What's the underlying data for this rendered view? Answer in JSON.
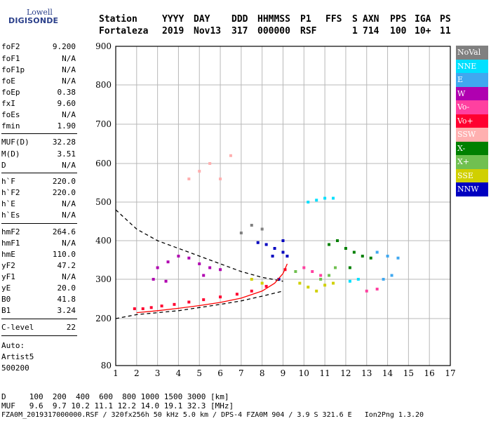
{
  "logo": {
    "top": "Lowell",
    "bottom": "DIGISONDE"
  },
  "header": {
    "labels": [
      "Station",
      "YYYY",
      "DAY",
      "DDD",
      "HHMMSS",
      "P1",
      "FFS",
      "S",
      "AXN",
      "PPS",
      "IGA",
      "PS"
    ],
    "values": [
      "Fortaleza",
      "2019",
      "Nov13",
      "317",
      "000000",
      "RSF",
      "1",
      "714",
      "100",
      "10+",
      "11"
    ]
  },
  "sidebar": {
    "group1": [
      {
        "key": "foF2",
        "value": "9.200"
      },
      {
        "key": "foF1",
        "value": "N/A"
      },
      {
        "key": "foF1p",
        "value": "N/A"
      },
      {
        "key": "foE",
        "value": "N/A"
      },
      {
        "key": "foEp",
        "value": "0.38"
      },
      {
        "key": "fxI",
        "value": "9.60"
      },
      {
        "key": "foEs",
        "value": "N/A"
      },
      {
        "key": "fmin",
        "value": "1.90"
      }
    ],
    "group2": [
      {
        "key": "MUF(D)",
        "value": "32.28"
      },
      {
        "key": "M(D)",
        "value": "3.51"
      },
      {
        "key": "D",
        "value": "N/A"
      }
    ],
    "group3": [
      {
        "key": "h`F",
        "value": "220.0"
      },
      {
        "key": "h`F2",
        "value": "220.0"
      },
      {
        "key": "h`E",
        "value": "N/A"
      },
      {
        "key": "h`Es",
        "value": "N/A"
      }
    ],
    "group4": [
      {
        "key": "hmF2",
        "value": "264.6"
      },
      {
        "key": "hmF1",
        "value": "N/A"
      },
      {
        "key": "hmE",
        "value": "110.0"
      },
      {
        "key": "yF2",
        "value": "47.2"
      },
      {
        "key": "yF1",
        "value": "N/A"
      },
      {
        "key": "yE",
        "value": "20.0"
      },
      {
        "key": "B0",
        "value": "41.8"
      },
      {
        "key": "B1",
        "value": "3.24"
      }
    ],
    "clevel": {
      "key": "C-level",
      "value": "22"
    },
    "auto": [
      "Auto:",
      "Artist5",
      "500200"
    ]
  },
  "legend": [
    {
      "label": "NoVal",
      "color": "#808080"
    },
    {
      "label": "NNE",
      "color": "#00e0ff"
    },
    {
      "label": "E",
      "color": "#40a8f0"
    },
    {
      "label": "W",
      "color": "#b000b0"
    },
    {
      "label": "Vo-",
      "color": "#ff40a0"
    },
    {
      "label": "Vo+",
      "color": "#ff0030"
    },
    {
      "label": "SSW",
      "color": "#ffb0b0"
    },
    {
      "label": "X-",
      "color": "#008000"
    },
    {
      "label": "X+",
      "color": "#70c050"
    },
    {
      "label": "SSE",
      "color": "#d0d000"
    },
    {
      "label": "NNW",
      "color": "#0000c0"
    }
  ],
  "footer": {
    "line1": "D     100  200  400  600  800 1000 1500 3000 [km]",
    "line2": "MUF   9.6  9.7 10.2 11.1 12.2 14.0 19.1 32.3 [MHz]",
    "line3": "FZA0M_2019317000000.RSF / 320fx256h 50 kHz 5.0 km / DPS-4 FZA0M 904 / 3.9 S 321.6 E   Ion2Png 1.3.20"
  },
  "chart_data": {
    "type": "scatter",
    "xlim": [
      1,
      17
    ],
    "ylim": [
      80,
      900
    ],
    "x_ticks": [
      "1",
      "2",
      "3",
      "4",
      "5",
      "6",
      "7",
      "8",
      "9",
      "10",
      "11",
      "12",
      "13",
      "14",
      "15",
      "16",
      "17"
    ],
    "y_ticks": [
      "80",
      "200",
      "300",
      "400",
      "500",
      "600",
      "700",
      "800",
      "900"
    ],
    "grid": true,
    "legend_position": "right",
    "series": [
      {
        "name": "Vo+",
        "color": "#ff0030",
        "points": [
          [
            1.9,
            225
          ],
          [
            2.3,
            225
          ],
          [
            2.7,
            228
          ],
          [
            3.2,
            232
          ],
          [
            3.8,
            236
          ],
          [
            4.5,
            242
          ],
          [
            5.2,
            248
          ],
          [
            6.0,
            255
          ],
          [
            6.8,
            262
          ],
          [
            7.5,
            270
          ],
          [
            8.2,
            282
          ],
          [
            8.8,
            300
          ],
          [
            9.1,
            325
          ]
        ]
      },
      {
        "name": "W",
        "color": "#b000b0",
        "points": [
          [
            3.0,
            330
          ],
          [
            3.5,
            345
          ],
          [
            4.0,
            360
          ],
          [
            4.5,
            355
          ],
          [
            5.0,
            340
          ],
          [
            5.5,
            330
          ],
          [
            6.0,
            325
          ],
          [
            2.8,
            300
          ],
          [
            3.4,
            295
          ],
          [
            5.2,
            310
          ]
        ]
      },
      {
        "name": "NNW",
        "color": "#0000c0",
        "points": [
          [
            8.2,
            390
          ],
          [
            8.6,
            380
          ],
          [
            9.0,
            370
          ],
          [
            9.2,
            360
          ],
          [
            7.8,
            395
          ],
          [
            8.5,
            360
          ],
          [
            9.0,
            400
          ],
          [
            8.8,
            300
          ]
        ]
      },
      {
        "name": "X-",
        "color": "#008000",
        "points": [
          [
            12.0,
            380
          ],
          [
            12.4,
            370
          ],
          [
            12.8,
            360
          ],
          [
            13.2,
            355
          ],
          [
            11.2,
            390
          ],
          [
            11.6,
            400
          ],
          [
            12.2,
            330
          ]
        ]
      },
      {
        "name": "NNE",
        "color": "#00e0ff",
        "points": [
          [
            10.2,
            500
          ],
          [
            10.6,
            505
          ],
          [
            11.0,
            510
          ],
          [
            11.4,
            510
          ],
          [
            12.2,
            295
          ],
          [
            12.6,
            300
          ]
        ]
      },
      {
        "name": "SSE",
        "color": "#d0d000",
        "points": [
          [
            9.8,
            290
          ],
          [
            10.2,
            280
          ],
          [
            10.6,
            270
          ],
          [
            11.0,
            285
          ],
          [
            11.4,
            290
          ],
          [
            7.5,
            300
          ],
          [
            8.0,
            290
          ]
        ]
      },
      {
        "name": "E",
        "color": "#40a8f0",
        "points": [
          [
            13.5,
            370
          ],
          [
            14.0,
            360
          ],
          [
            14.5,
            355
          ],
          [
            13.8,
            300
          ],
          [
            14.2,
            310
          ]
        ]
      },
      {
        "name": "Vo-",
        "color": "#ff40a0",
        "points": [
          [
            10.0,
            330
          ],
          [
            10.4,
            320
          ],
          [
            10.8,
            310
          ],
          [
            13.0,
            270
          ],
          [
            13.5,
            275
          ]
        ]
      },
      {
        "name": "X+",
        "color": "#70c050",
        "points": [
          [
            10.8,
            300
          ],
          [
            11.2,
            310
          ],
          [
            11.5,
            330
          ],
          [
            9.6,
            320
          ]
        ]
      },
      {
        "name": "SSW",
        "color": "#ffb0b0",
        "points": [
          [
            4.5,
            560
          ],
          [
            5.0,
            580
          ],
          [
            5.5,
            600
          ],
          [
            6.0,
            560
          ],
          [
            6.5,
            620
          ]
        ]
      },
      {
        "name": "NoVal",
        "color": "#808080",
        "points": [
          [
            7.0,
            420
          ],
          [
            7.5,
            440
          ],
          [
            8.0,
            430
          ]
        ]
      }
    ],
    "lines": [
      {
        "color": "#000000",
        "dash": "5,4",
        "points": [
          [
            1,
            480
          ],
          [
            2,
            430
          ],
          [
            3,
            400
          ],
          [
            4,
            380
          ],
          [
            5,
            360
          ],
          [
            6,
            340
          ],
          [
            7,
            320
          ],
          [
            8,
            305
          ],
          [
            9,
            295
          ]
        ]
      },
      {
        "color": "#000000",
        "dash": "5,4",
        "points": [
          [
            1,
            200
          ],
          [
            2,
            210
          ],
          [
            3,
            215
          ],
          [
            4,
            220
          ],
          [
            5,
            228
          ],
          [
            6,
            236
          ],
          [
            7,
            245
          ],
          [
            8,
            257
          ],
          [
            9,
            270
          ]
        ]
      },
      {
        "color": "#ff0000",
        "dash": "",
        "points": [
          [
            2,
            215
          ],
          [
            3,
            220
          ],
          [
            4,
            226
          ],
          [
            5,
            233
          ],
          [
            6,
            241
          ],
          [
            7,
            252
          ],
          [
            8,
            270
          ],
          [
            8.6,
            290
          ],
          [
            9.0,
            315
          ],
          [
            9.2,
            340
          ]
        ]
      }
    ]
  }
}
